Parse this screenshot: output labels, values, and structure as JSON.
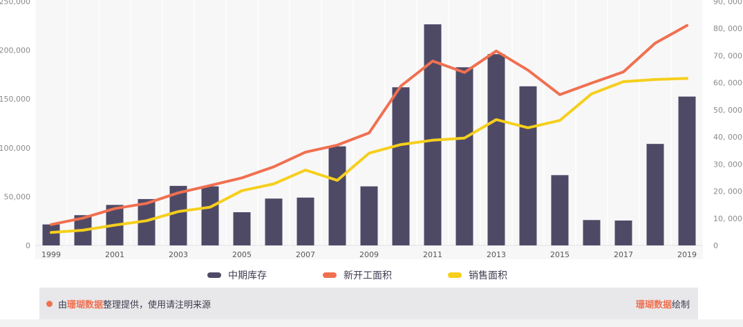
{
  "chart_data": {
    "type": "bar",
    "categories": [
      "1999",
      "2000",
      "2001",
      "2002",
      "2003",
      "2004",
      "2005",
      "2006",
      "2007",
      "2008",
      "2009",
      "2010",
      "2011",
      "2012",
      "2013",
      "2014",
      "2015",
      "2016",
      "2017",
      "2018",
      "2019"
    ],
    "x_tick_labels": [
      "1999",
      "2001",
      "2003",
      "2005",
      "2007",
      "2009",
      "2011",
      "2013",
      "2015",
      "2017",
      "2019"
    ],
    "y_left": {
      "ticks": [
        0,
        50000,
        100000,
        150000,
        200000,
        250000
      ],
      "tick_labels": [
        "0",
        "50,000",
        "100,000",
        "150,000",
        "200,000",
        "250,000"
      ],
      "ylim": [
        0,
        250000
      ]
    },
    "y_right": {
      "ticks": [
        0,
        10000,
        20000,
        30000,
        40000,
        50000,
        60000,
        70000,
        80000,
        90000
      ],
      "tick_labels": [
        "0",
        "10, 000",
        "20, 000",
        "30, 000",
        "40, 000",
        "50, 000",
        "60, 000",
        "70, 000",
        "80, 000",
        "90, 000"
      ],
      "ylim": [
        0,
        90000
      ]
    },
    "series": [
      {
        "name": "中期库存",
        "type": "bar",
        "axis": "left",
        "color": "#4e4a66",
        "values": [
          21500,
          31000,
          41500,
          47500,
          61000,
          60500,
          34000,
          48000,
          49000,
          101500,
          60500,
          162000,
          226500,
          182500,
          196000,
          163000,
          72000,
          26000,
          25500,
          104000,
          152500
        ]
      },
      {
        "name": "新开工面积",
        "type": "line",
        "axis": "right",
        "color": "#f07050",
        "values": [
          7700,
          10100,
          13600,
          15500,
          19400,
          22100,
          24900,
          29000,
          34400,
          37000,
          41500,
          58800,
          68000,
          63800,
          71700,
          64600,
          55600,
          59900,
          64000,
          74600,
          81100
        ]
      },
      {
        "name": "销售面积",
        "type": "line",
        "axis": "right",
        "color": "#f5cf1c",
        "values": [
          4800,
          5600,
          7500,
          9100,
          12500,
          14100,
          20200,
          22700,
          27800,
          24000,
          34000,
          37200,
          38800,
          39600,
          46400,
          43400,
          46100,
          55900,
          60400,
          61200,
          61600
        ]
      }
    ]
  },
  "footer": {
    "prefix": "由 ",
    "brand": "珊瑚数据",
    "suffix": " 整理提供，使用请注明来源",
    "right_brand": "珊瑚数据",
    "right_suffix": " 绘制",
    "accent_color": "#f07050"
  }
}
